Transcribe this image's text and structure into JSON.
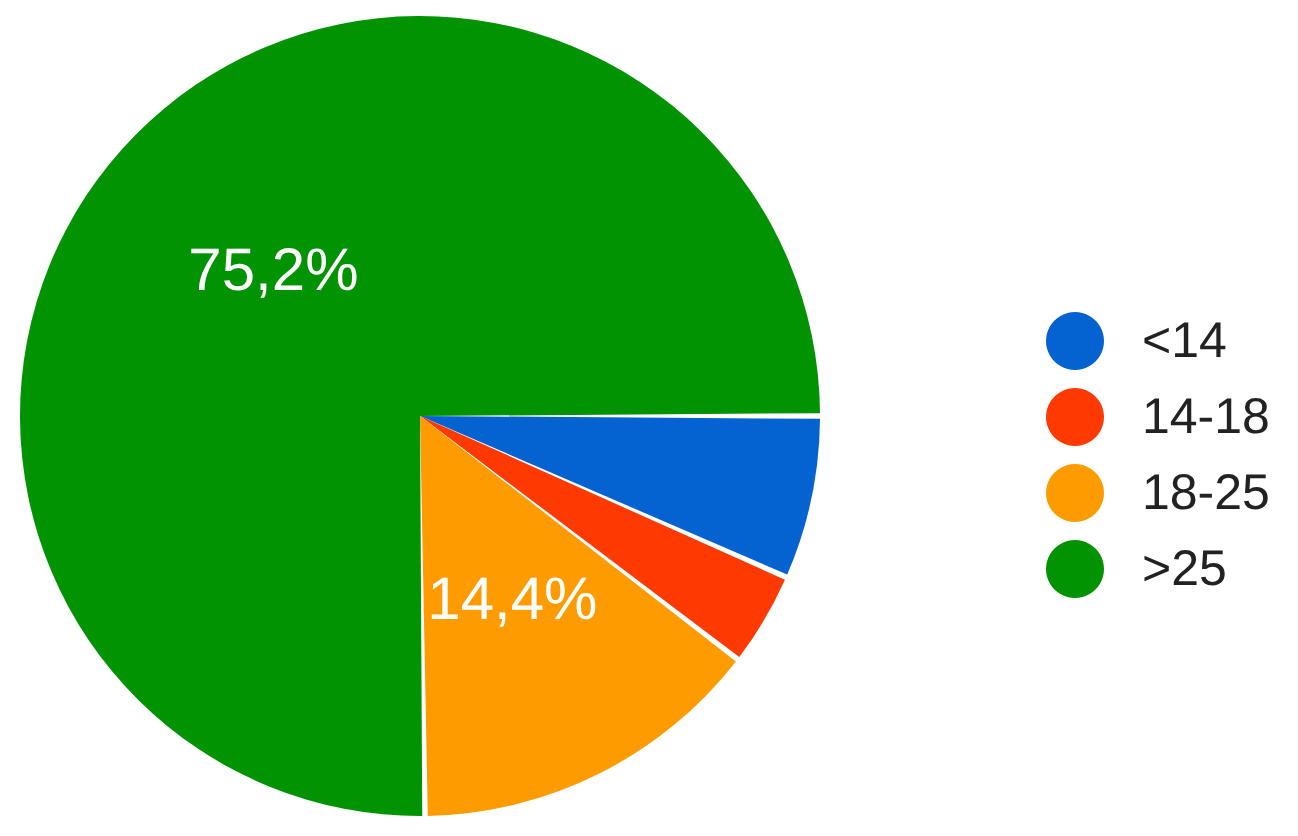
{
  "chart_data": {
    "type": "pie",
    "categories": [
      "<14",
      "14-18",
      "18-25",
      ">25"
    ],
    "values": [
      6.6,
      3.8,
      14.4,
      75.2
    ],
    "colors": [
      "#0563d1",
      "#fe3a02",
      "#fe9b00",
      "#019301"
    ],
    "value_labels": [
      null,
      null,
      "14,4%",
      "75,2%"
    ],
    "legend": "right"
  }
}
